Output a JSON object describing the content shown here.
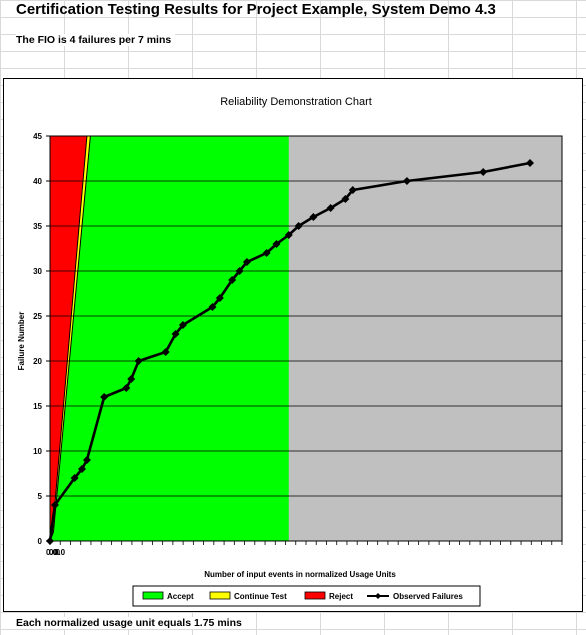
{
  "header": {
    "title": "Certification Testing Results for Project Example, System Demo 4.3",
    "fio_text": "The FIO is 4 failures per 7 mins"
  },
  "footer": {
    "note": "Each normalized usage unit equals 1.75 mins"
  },
  "colors": {
    "reject": "#ff0000",
    "continue": "#ffff00",
    "accept": "#00ff00",
    "beyond": "#c0c0c0",
    "series": "#000000"
  },
  "chart_data": {
    "type": "line",
    "title": "Reliability Demonstration Chart",
    "xlabel": "Number of input events in normalized Usage Units",
    "ylabel": "Failure Number",
    "ylim": [
      0,
      45
    ],
    "yticks": [
      0,
      5,
      10,
      15,
      20,
      25,
      30,
      35,
      40,
      45
    ],
    "xlim": [
      0,
      10.4
    ],
    "xtick_labels": [
      "0.0",
      "0.0",
      "0.0"
    ],
    "grid": "horizontal",
    "legend_position": "bottom",
    "regions": [
      {
        "name": "Accept",
        "color": "#00ff00"
      },
      {
        "name": "Continue Test",
        "color": "#ffff00"
      },
      {
        "name": "Reject",
        "color": "#ff0000"
      }
    ],
    "reject_boundary": [
      [
        0,
        0
      ],
      [
        0.05,
        1.0
      ],
      [
        0.75,
        45
      ]
    ],
    "accept_boundary": [
      [
        0,
        0
      ],
      [
        0.07,
        1.0
      ],
      [
        0.82,
        45
      ]
    ],
    "accept_region_end_x": 4.85,
    "series": [
      {
        "name": "Observed Failures",
        "x": [
          0,
          0.1,
          0.5,
          0.65,
          0.75,
          1.1,
          1.55,
          1.65,
          1.8,
          2.35,
          2.55,
          2.7,
          3.3,
          3.45,
          3.7,
          3.85,
          4.0,
          4.4,
          4.6,
          4.85,
          5.05,
          5.35,
          5.7,
          6.0,
          6.15,
          7.25,
          8.8,
          9.75
        ],
        "y": [
          0,
          4,
          7,
          8,
          9,
          16,
          17,
          18,
          20,
          21,
          23,
          24,
          26,
          27,
          29,
          30,
          31,
          32,
          33,
          34,
          35,
          36,
          37,
          38,
          39,
          40,
          41,
          42
        ]
      }
    ]
  }
}
